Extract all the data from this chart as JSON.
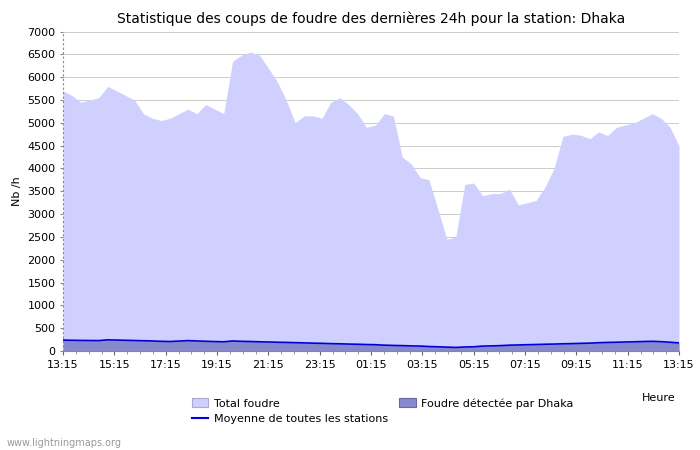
{
  "title": "Statistique des coups de foudre des dernières 24h pour la station: Dhaka",
  "ylabel": "Nb /h",
  "xlabel": "Heure",
  "watermark": "www.lightningmaps.org",
  "ylim": [
    0,
    7000
  ],
  "yticks": [
    0,
    500,
    1000,
    1500,
    2000,
    2500,
    3000,
    3500,
    4000,
    4500,
    5000,
    5500,
    6000,
    6500,
    7000
  ],
  "xtick_labels": [
    "13:15",
    "15:15",
    "17:15",
    "19:15",
    "21:15",
    "23:15",
    "01:15",
    "03:15",
    "05:15",
    "07:15",
    "09:15",
    "11:15",
    "13:15"
  ],
  "total_foudre": [
    5700,
    5600,
    5450,
    5500,
    5550,
    5800,
    5700,
    5600,
    5500,
    5200,
    5100,
    5050,
    5100,
    5200,
    5300,
    5200,
    5400,
    5300,
    5200,
    6350,
    6480,
    6550,
    6480,
    6200,
    5900,
    5500,
    5000,
    5150,
    5150,
    5100,
    5450,
    5550,
    5400,
    5200,
    4900,
    4950,
    5200,
    5150,
    4250,
    4100,
    3800,
    3750,
    3100,
    2450,
    2500,
    3650,
    3680,
    3400,
    3450,
    3450,
    3550,
    3200,
    3250,
    3300,
    3600,
    4000,
    4700,
    4750,
    4730,
    4650,
    4800,
    4720,
    4900,
    4950,
    5000,
    5100,
    5200,
    5100,
    4900,
    4500
  ],
  "foudre_dhaka": [
    250,
    240,
    240,
    235,
    230,
    250,
    245,
    240,
    235,
    230,
    225,
    215,
    210,
    220,
    230,
    225,
    215,
    210,
    205,
    225,
    215,
    210,
    205,
    200,
    195,
    190,
    185,
    180,
    175,
    170,
    165,
    160,
    155,
    150,
    145,
    140,
    130,
    125,
    120,
    115,
    110,
    100,
    95,
    90,
    80,
    90,
    95,
    110,
    115,
    120,
    130,
    135,
    140,
    145,
    150,
    155,
    160,
    165,
    170,
    175,
    185,
    190,
    195,
    200,
    205,
    210,
    215,
    205,
    195,
    180
  ],
  "moyenne_stations": [
    240,
    235,
    232,
    230,
    228,
    245,
    240,
    235,
    230,
    225,
    220,
    212,
    208,
    218,
    228,
    220,
    213,
    207,
    202,
    220,
    212,
    208,
    202,
    198,
    192,
    188,
    183,
    178,
    172,
    168,
    162,
    158,
    152,
    148,
    142,
    138,
    128,
    122,
    118,
    112,
    108,
    98,
    92,
    85,
    78,
    88,
    92,
    108,
    112,
    118,
    128,
    132,
    138,
    143,
    148,
    152,
    158,
    162,
    168,
    172,
    182,
    188,
    192,
    198,
    202,
    208,
    212,
    205,
    192,
    178
  ],
  "fill_total_color": "#d0d0ff",
  "fill_dhaka_color": "#8888cc",
  "line_moyenne_color": "#0000dd",
  "bg_color": "#ffffff",
  "plot_bg_color": "#ffffff",
  "grid_color": "#cccccc",
  "title_fontsize": 10,
  "label_fontsize": 8,
  "tick_fontsize": 8
}
